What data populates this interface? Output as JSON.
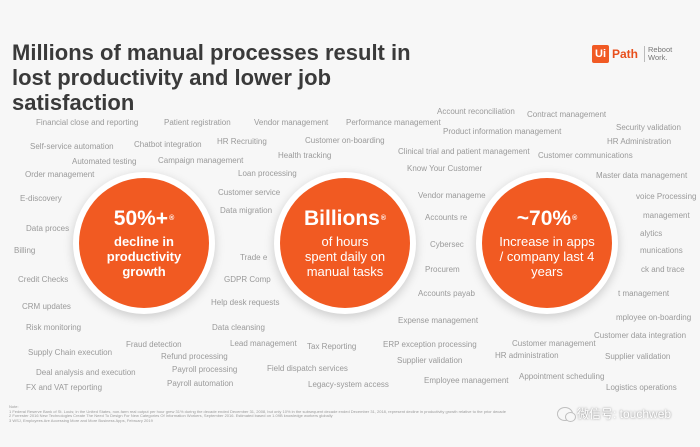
{
  "slide": {
    "title": "Millions of manual processes result in lost productivity and lower job satisfaction"
  },
  "brand": {
    "box": "Ui",
    "path": "Path",
    "tagline": "Reboot Work."
  },
  "circles": [
    {
      "headline": "50%+",
      "mark": "®",
      "lines": [
        "decline in",
        "productivity",
        "growth"
      ],
      "color": "#f15a22"
    },
    {
      "headline": "Billions",
      "mark": "®",
      "lines": [
        "of hours",
        "spent daily on",
        "manual tasks"
      ],
      "color": "#f15a22"
    },
    {
      "headline": "~70%",
      "mark": "®",
      "lines": [
        "Increase in apps",
        "/ company last 4",
        "years"
      ],
      "color": "#f15a22"
    }
  ],
  "background_labels": [
    "Financial close and reporting",
    "Patient registration",
    "Vendor management",
    "Performance management",
    "Account reconciliation",
    "Contract management",
    "Security validation",
    "Self-service automation",
    "Chatbot integration",
    "HR Recruiting",
    "Customer on-boarding",
    "Product information management",
    "HR Administration",
    "Automated testing",
    "Campaign management",
    "Health tracking",
    "Clinical trial and patient management",
    "Customer communications",
    "Order management",
    "Loan processing",
    "Know Your Customer",
    "Master data management",
    "E-discovery",
    "Customer service",
    "Vendor manageme",
    "voice Processing",
    "Data migration",
    "Data proces",
    "Accounts re",
    "management",
    "Billing",
    "Trade e",
    "Cybersec",
    "alytics",
    "munications",
    "Credit Checks",
    "GDPR Comp",
    "Procurem",
    "ck and trace",
    "CRM updates",
    "Help desk requests",
    "Accounts payab",
    "t management",
    "Risk monitoring",
    "Data cleansing",
    "Expense management",
    "mployee on-boarding",
    "Customer data integration",
    "Fraud detection",
    "Lead management",
    "Tax Reporting",
    "ERP exception processing",
    "Customer management",
    "Supply Chain execution",
    "Refund processing",
    "HR administration",
    "Supplier validation",
    "Supplier validation",
    "Payroll processing",
    "Field dispatch services",
    "Deal analysis and execution",
    "Appointment scheduling",
    "Employee management",
    "FX and VAT reporting",
    "Payroll automation",
    "Legacy-system access",
    "Logistics operations"
  ],
  "footnote": {
    "label": "Note:",
    "lines": [
      "1   Federal Reserve Bank of St. Louis; in the United States, non-farm real output per hour grew 31% during the decade ended December 31, 2008, but only 10% in the subsequent decade ended December 31, 2018, represent decline in productivity growth relative to the prior decade",
      "2   Forrester 2016 New Technologies Create The Need To Design For New Categories Of Information Workers, September 2016. Estimated based on 1.09B knowledge workers globally",
      "3   WSJ, Employees Are Accessing More and More Business Apps, February 2019"
    ]
  },
  "watermark": {
    "text": "微信号: touchweb"
  }
}
